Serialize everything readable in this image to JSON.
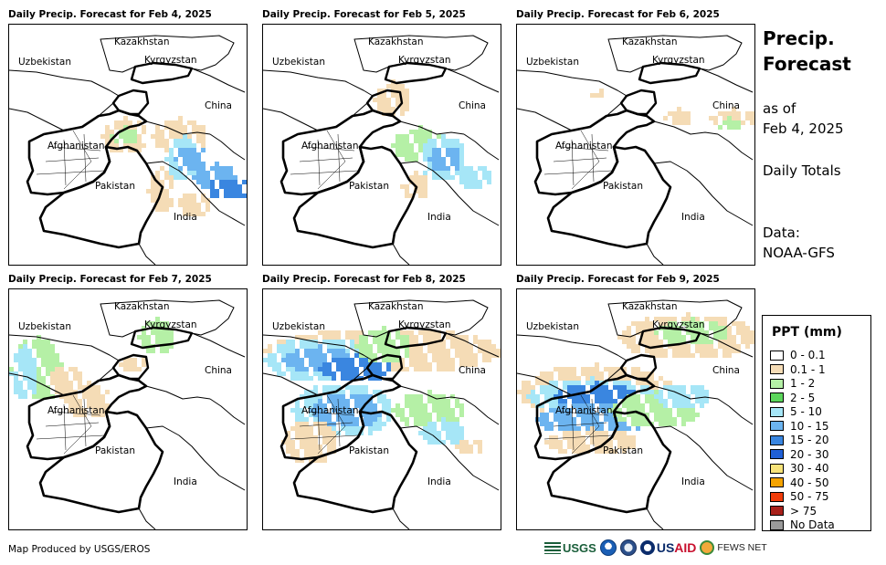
{
  "panels": [
    {
      "title": "Daily Precip. Forecast for Feb 4, 2025",
      "id": "feb4"
    },
    {
      "title": "Daily Precip. Forecast for Feb 5, 2025",
      "id": "feb5"
    },
    {
      "title": "Daily Precip. Forecast for Feb 6, 2025",
      "id": "feb6"
    },
    {
      "title": "Daily Precip. Forecast for Feb 7, 2025",
      "id": "feb7"
    },
    {
      "title": "Daily Precip. Forecast for Feb 8, 2025",
      "id": "feb8"
    },
    {
      "title": "Daily Precip. Forecast for Feb 9, 2025",
      "id": "feb9"
    }
  ],
  "map_labels": {
    "kazakhstan": "Kazakhstan",
    "uzbekistan": "Uzbekistan",
    "kyrgyzstan": "Kyrgyzstan",
    "china": "China",
    "afghanistan": "Afghanistan",
    "pakistan": "Pakistan",
    "india": "India"
  },
  "side": {
    "title_line1": "Precip.",
    "title_line2": "Forecast",
    "asof_line1": "as of",
    "asof_line2": "Feb 4, 2025",
    "totals": "Daily Totals",
    "data_line1": "Data:",
    "data_line2": "NOAA-GFS"
  },
  "legend": {
    "title": "PPT (mm)",
    "items": [
      {
        "label": "0 - 0.1",
        "color": "#ffffff"
      },
      {
        "label": "0.1 - 1",
        "color": "#f5dcb6"
      },
      {
        "label": "1 - 2",
        "color": "#b5f0a6"
      },
      {
        "label": "2 - 5",
        "color": "#5cd65c"
      },
      {
        "label": "5 - 10",
        "color": "#a6e6f7"
      },
      {
        "label": "10 - 15",
        "color": "#6cb4f0"
      },
      {
        "label": "15 - 20",
        "color": "#3a86e0"
      },
      {
        "label": "20 - 30",
        "color": "#1f5fd6"
      },
      {
        "label": "30 - 40",
        "color": "#f7e37a"
      },
      {
        "label": "40 - 50",
        "color": "#f5a300"
      },
      {
        "label": "50 - 75",
        "color": "#f03c0a"
      },
      {
        "label": "> 75",
        "color": "#a8201a"
      },
      {
        "label": "No Data",
        "color": "#9a9a9a"
      }
    ]
  },
  "footer": "Map Produced by USGS/EROS",
  "logos": {
    "usgs": "USGS",
    "usaid_us": "US",
    "usaid_aid": "AID",
    "fews": "FEWS NET"
  }
}
